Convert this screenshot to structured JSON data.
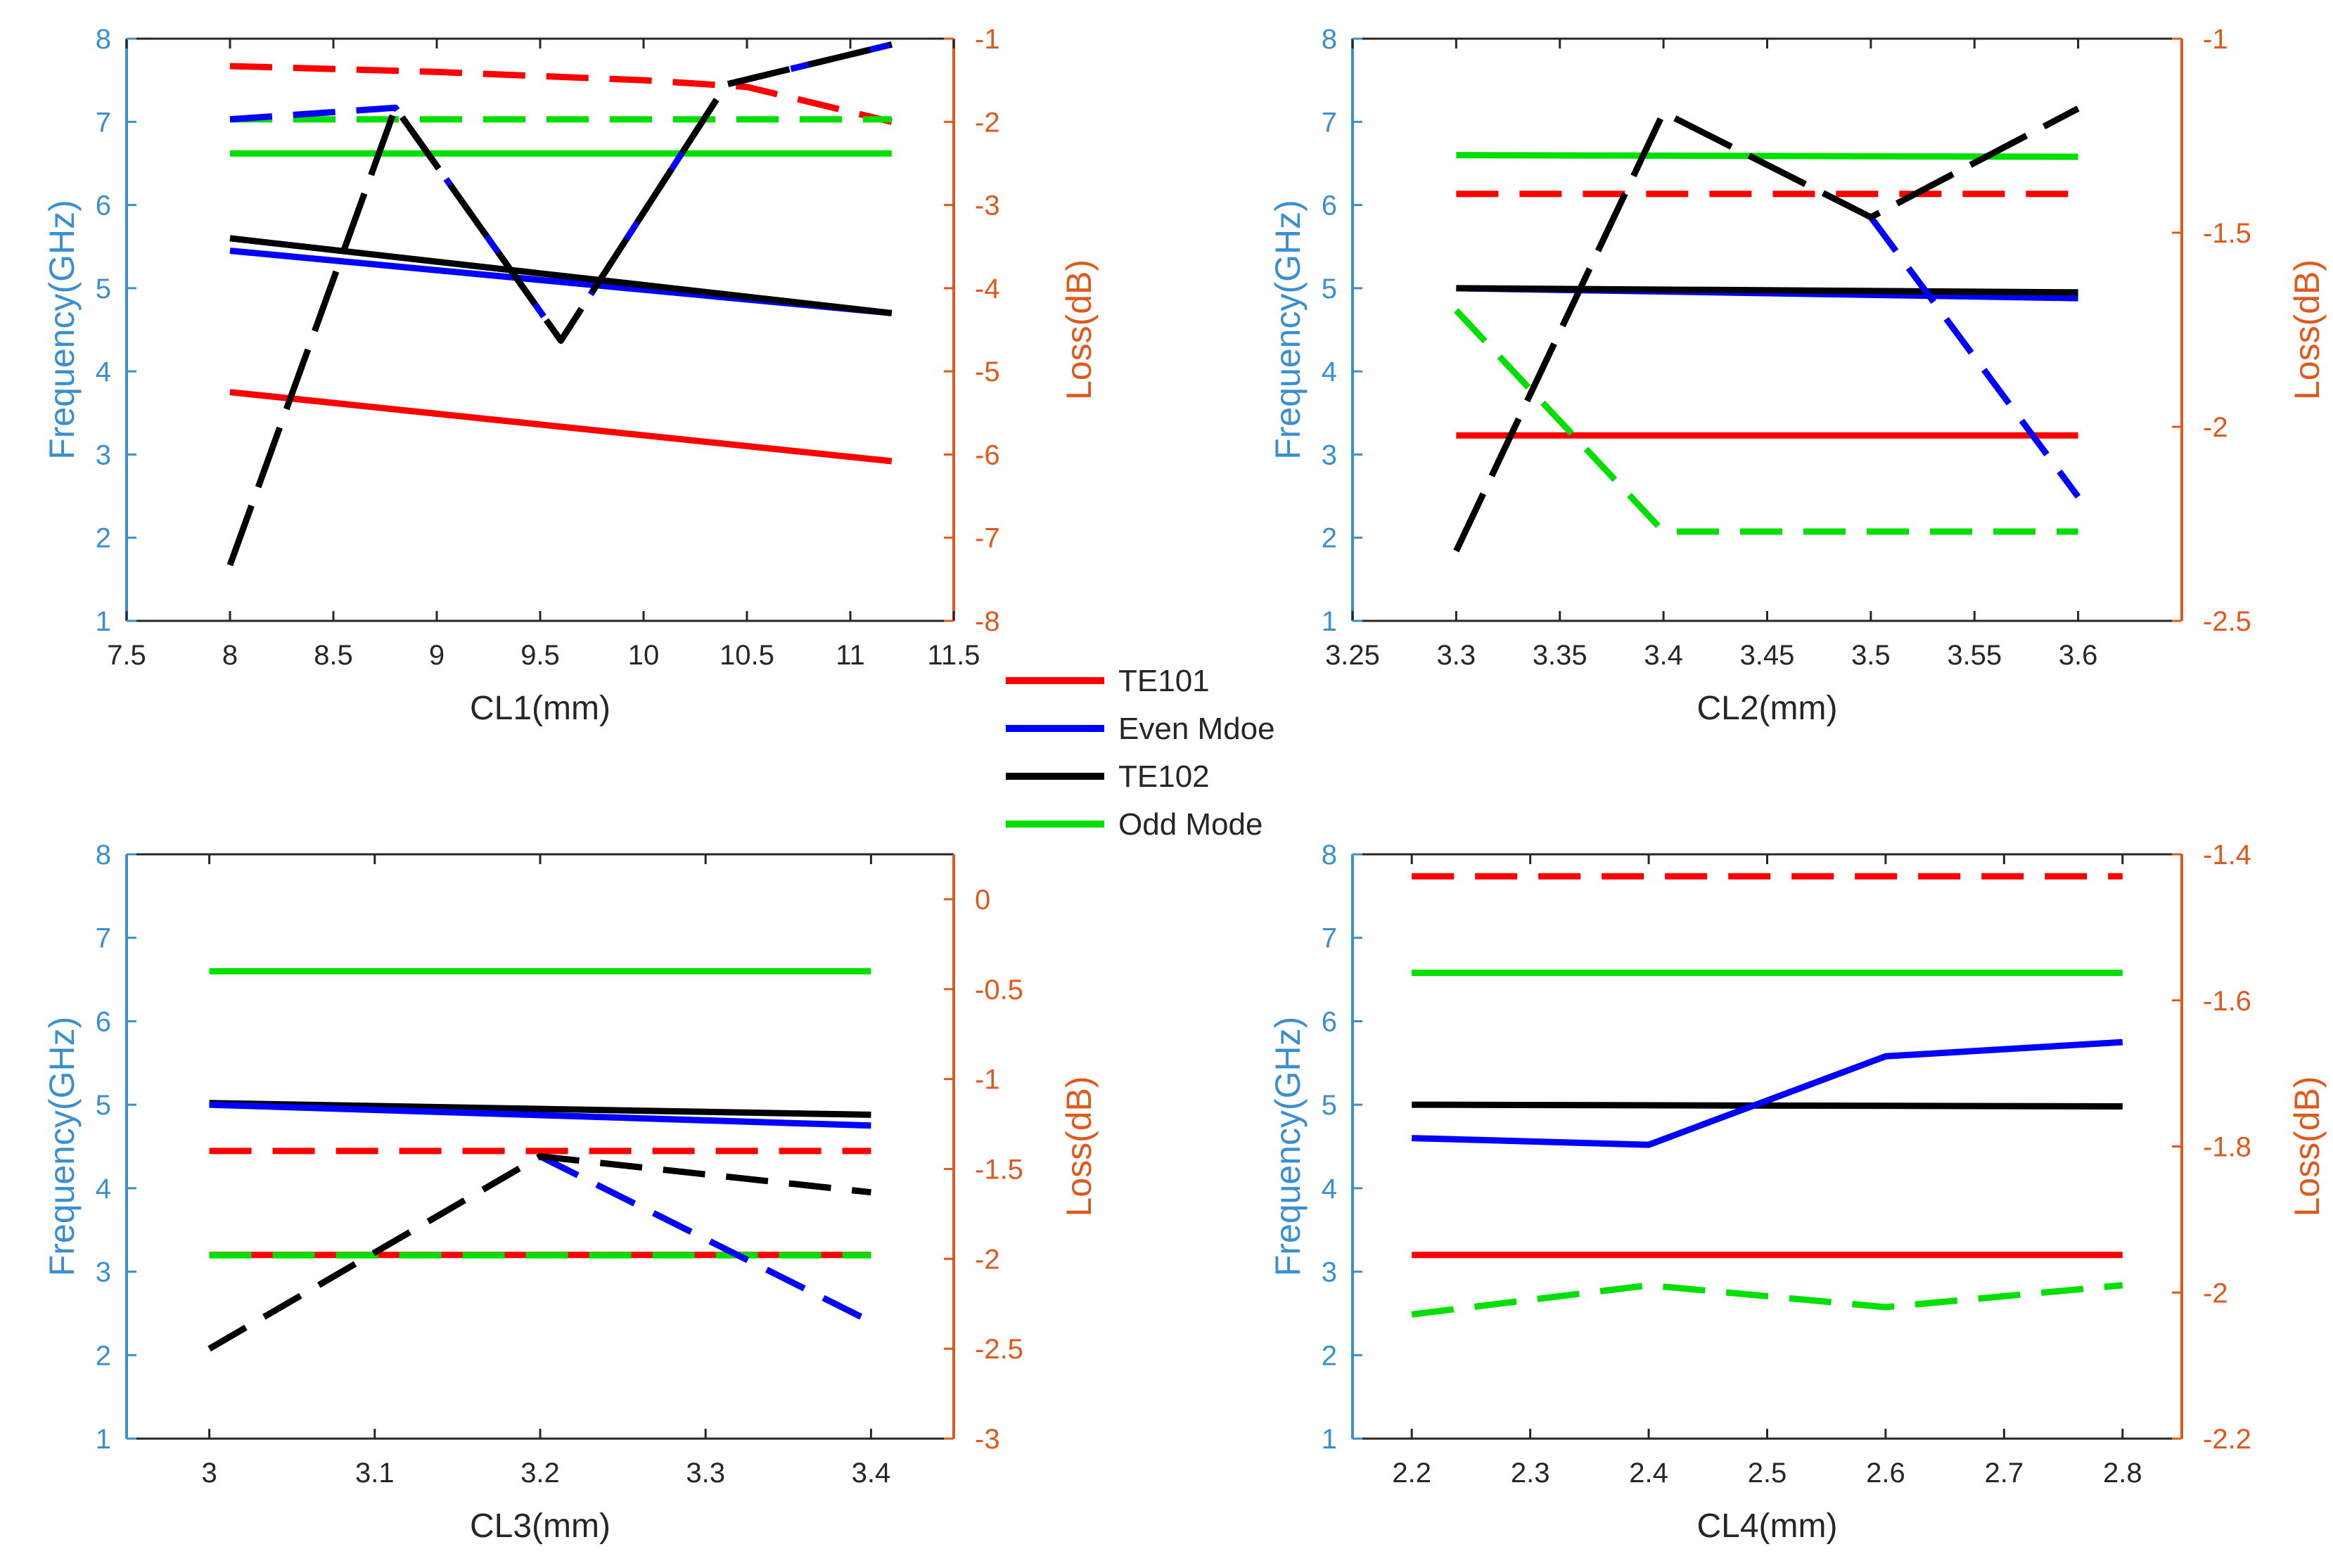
{
  "colors": {
    "left_axis": "#3a8fd0",
    "right_axis": "#e0591c",
    "te101": "#ff0000",
    "even": "#0000ff",
    "te102": "#000000",
    "odd": "#00e000"
  },
  "legend": [
    {
      "label": "TE101",
      "color": "#ff0000"
    },
    {
      "label": "Even Mdoe",
      "color": "#0000ff"
    },
    {
      "label": "TE102",
      "color": "#000000"
    },
    {
      "label": "Odd Mode",
      "color": "#00e000"
    }
  ],
  "chart_data": [
    {
      "type": "line",
      "xlabel": "CL1(mm)",
      "ylabel": "Frequency(GHz)",
      "y2label": "Loss(dB)",
      "xlim": [
        7.5,
        11.5
      ],
      "xticks": [
        7.5,
        8,
        8.5,
        9,
        9.5,
        10,
        10.5,
        11,
        11.5
      ],
      "ylim": [
        1,
        8
      ],
      "yticks": [
        1,
        2,
        3,
        4,
        5,
        6,
        7,
        8
      ],
      "y2lim": [
        -8,
        -1
      ],
      "y2ticks": [
        -8,
        -7,
        -6,
        -5,
        -4,
        -3,
        -2,
        -1
      ],
      "series": [
        {
          "name": "TE101 frequency",
          "axis": "left",
          "style": "solid",
          "color": "#ff0000",
          "x": [
            8,
            11.2
          ],
          "y": [
            3.75,
            2.92
          ]
        },
        {
          "name": "Even mode frequency",
          "axis": "left",
          "style": "solid",
          "color": "#0000ff",
          "x": [
            8,
            11.2
          ],
          "y": [
            5.45,
            4.7
          ]
        },
        {
          "name": "TE102 frequency",
          "axis": "left",
          "style": "solid",
          "color": "#000000",
          "x": [
            8,
            11.2
          ],
          "y": [
            5.6,
            4.7
          ]
        },
        {
          "name": "Odd mode frequency",
          "axis": "left",
          "style": "solid",
          "color": "#00e000",
          "x": [
            8,
            11.2
          ],
          "y": [
            6.62,
            6.62
          ]
        },
        {
          "name": "TE101 loss",
          "axis": "right",
          "style": "dashed",
          "color": "#ff0000",
          "x": [
            8,
            9,
            10,
            10.5,
            11.2
          ],
          "y": [
            -1.33,
            -1.4,
            -1.5,
            -1.58,
            -2.0
          ]
        },
        {
          "name": "Odd mode loss",
          "axis": "right",
          "style": "dashed",
          "color": "#00e000",
          "x": [
            8,
            11.2
          ],
          "y": [
            -1.97,
            -1.97
          ]
        },
        {
          "name": "Even mode loss",
          "axis": "right",
          "style": "dashed",
          "color": "#0000ff",
          "x": [
            8,
            8.8,
            9.6,
            10.4,
            11.2
          ],
          "y": [
            -1.97,
            -1.83,
            -4.63,
            -1.55,
            -1.07
          ]
        },
        {
          "name": "TE102 loss",
          "axis": "right",
          "style": "longdash",
          "color": "#000000",
          "x": [
            8,
            8.8,
            9.6,
            10.4,
            11.2
          ],
          "y": [
            -7.33,
            -1.83,
            -4.63,
            -1.55,
            -1.07
          ]
        }
      ]
    },
    {
      "type": "line",
      "xlabel": "CL2(mm)",
      "ylabel": "Frequency(GHz)",
      "y2label": "Loss(dB)",
      "xlim": [
        3.25,
        3.65
      ],
      "xticks": [
        3.25,
        3.3,
        3.35,
        3.4,
        3.45,
        3.5,
        3.55,
        3.6
      ],
      "ylim": [
        1,
        8
      ],
      "yticks": [
        1,
        2,
        3,
        4,
        5,
        6,
        7,
        8
      ],
      "y2lim": [
        -2.5,
        -1
      ],
      "y2ticks": [
        -2.5,
        -2,
        -1.5,
        -1
      ],
      "series": [
        {
          "name": "TE101 frequency",
          "axis": "left",
          "style": "solid",
          "color": "#ff0000",
          "x": [
            3.3,
            3.6
          ],
          "y": [
            3.23,
            3.23
          ]
        },
        {
          "name": "Even mode frequency",
          "axis": "left",
          "style": "solid",
          "color": "#0000ff",
          "x": [
            3.3,
            3.6
          ],
          "y": [
            5.0,
            4.88
          ]
        },
        {
          "name": "TE102 frequency",
          "axis": "left",
          "style": "solid",
          "color": "#000000",
          "x": [
            3.3,
            3.6
          ],
          "y": [
            5.0,
            4.95
          ]
        },
        {
          "name": "Odd mode frequency",
          "axis": "left",
          "style": "solid",
          "color": "#00e000",
          "x": [
            3.3,
            3.6
          ],
          "y": [
            6.6,
            6.58
          ]
        },
        {
          "name": "TE101 loss",
          "axis": "right",
          "style": "dashed",
          "color": "#ff0000",
          "x": [
            3.3,
            3.6
          ],
          "y": [
            -1.4,
            -1.4
          ]
        },
        {
          "name": "Odd mode loss",
          "axis": "right",
          "style": "dashed",
          "color": "#00e000",
          "x": [
            3.3,
            3.4,
            3.6
          ],
          "y": [
            -1.7,
            -2.27,
            -2.27
          ]
        },
        {
          "name": "Even mode loss",
          "axis": "right",
          "style": "dashed",
          "color": "#0000ff",
          "x": [
            3.5,
            3.6
          ],
          "y": [
            -1.46,
            -2.18
          ]
        },
        {
          "name": "TE102 loss",
          "axis": "right",
          "style": "longdash",
          "color": "#000000",
          "x": [
            3.3,
            3.4,
            3.5,
            3.6
          ],
          "y": [
            -2.32,
            -1.19,
            -1.46,
            -1.18
          ]
        }
      ]
    },
    {
      "type": "line",
      "xlabel": "CL3(mm)",
      "ylabel": "Frequency(GHz)",
      "y2label": "Loss(dB)",
      "xlim": [
        2.95,
        3.45
      ],
      "xticks": [
        3,
        3.1,
        3.2,
        3.3,
        3.4
      ],
      "ylim": [
        1,
        8
      ],
      "yticks": [
        1,
        2,
        3,
        4,
        5,
        6,
        7,
        8
      ],
      "y2lim": [
        -3,
        0.25
      ],
      "y2ticks": [
        -3,
        -2.5,
        -2,
        -1.5,
        -1,
        -0.5,
        0
      ],
      "series": [
        {
          "name": "Odd mode frequency",
          "axis": "left",
          "style": "solid",
          "color": "#00e000",
          "x": [
            3,
            3.4
          ],
          "y": [
            6.6,
            6.6
          ]
        },
        {
          "name": "TE102 frequency",
          "axis": "left",
          "style": "solid",
          "color": "#000000",
          "x": [
            3,
            3.4
          ],
          "y": [
            5.02,
            4.88
          ]
        },
        {
          "name": "Even mode frequency",
          "axis": "left",
          "style": "solid",
          "color": "#0000ff",
          "x": [
            3,
            3.4
          ],
          "y": [
            5.0,
            4.75
          ]
        },
        {
          "name": "TE101 frequency",
          "axis": "left",
          "style": "solid",
          "color": "#ff0000",
          "x": [
            3,
            3.4
          ],
          "y": [
            3.2,
            3.2
          ]
        },
        {
          "name": "TE101 loss",
          "axis": "right",
          "style": "dashed",
          "color": "#ff0000",
          "x": [
            3,
            3.4
          ],
          "y": [
            -1.4,
            -1.4
          ]
        },
        {
          "name": "Odd mode loss",
          "axis": "right",
          "style": "dashed",
          "color": "#00e000",
          "x": [
            3,
            3.4
          ],
          "y": [
            -1.98,
            -1.98
          ]
        },
        {
          "name": "Even mode loss",
          "axis": "right",
          "style": "dashed",
          "color": "#0000ff",
          "x": [
            3.2,
            3.4
          ],
          "y": [
            -1.43,
            -2.35
          ]
        },
        {
          "name": "TE102 loss",
          "axis": "right",
          "style": "dashed",
          "color": "#000000",
          "x": [
            3,
            3.2,
            3.4
          ],
          "y": [
            -2.5,
            -1.43,
            -1.63
          ]
        }
      ]
    },
    {
      "type": "line",
      "xlabel": "CL4(mm)",
      "ylabel": "Frequency(GHz)",
      "y2label": "Loss(dB)",
      "xlim": [
        2.15,
        2.85
      ],
      "xticks": [
        2.2,
        2.3,
        2.4,
        2.5,
        2.6,
        2.7,
        2.8
      ],
      "ylim": [
        1,
        8
      ],
      "yticks": [
        1,
        2,
        3,
        4,
        5,
        6,
        7,
        8
      ],
      "y2lim": [
        -2.2,
        -1.4
      ],
      "y2ticks": [
        -2.2,
        -2,
        -1.8,
        -1.6,
        -1.4
      ],
      "series": [
        {
          "name": "TE101 frequency",
          "axis": "left",
          "style": "solid",
          "color": "#ff0000",
          "x": [
            2.2,
            2.8
          ],
          "y": [
            3.2,
            3.2
          ]
        },
        {
          "name": "Odd mode frequency",
          "axis": "left",
          "style": "solid",
          "color": "#00e000",
          "x": [
            2.2,
            2.8
          ],
          "y": [
            6.58,
            6.58
          ]
        },
        {
          "name": "TE102 frequency",
          "axis": "left",
          "style": "solid",
          "color": "#000000",
          "x": [
            2.2,
            2.8
          ],
          "y": [
            5.0,
            4.98
          ]
        },
        {
          "name": "Even mode frequency",
          "axis": "left",
          "style": "solid",
          "color": "#0000ff",
          "x": [
            2.2,
            2.4,
            2.6,
            2.8
          ],
          "y": [
            4.6,
            4.52,
            5.58,
            5.75
          ]
        },
        {
          "name": "TE101 loss",
          "axis": "right",
          "style": "dashed",
          "color": "#ff0000",
          "x": [
            2.2,
            2.8
          ],
          "y": [
            -1.43,
            -1.43
          ]
        },
        {
          "name": "Odd mode loss",
          "axis": "right",
          "style": "dashed",
          "color": "#00e000",
          "x": [
            2.2,
            2.4,
            2.6,
            2.8
          ],
          "y": [
            -2.03,
            -1.99,
            -2.02,
            -1.99
          ]
        }
      ]
    }
  ]
}
